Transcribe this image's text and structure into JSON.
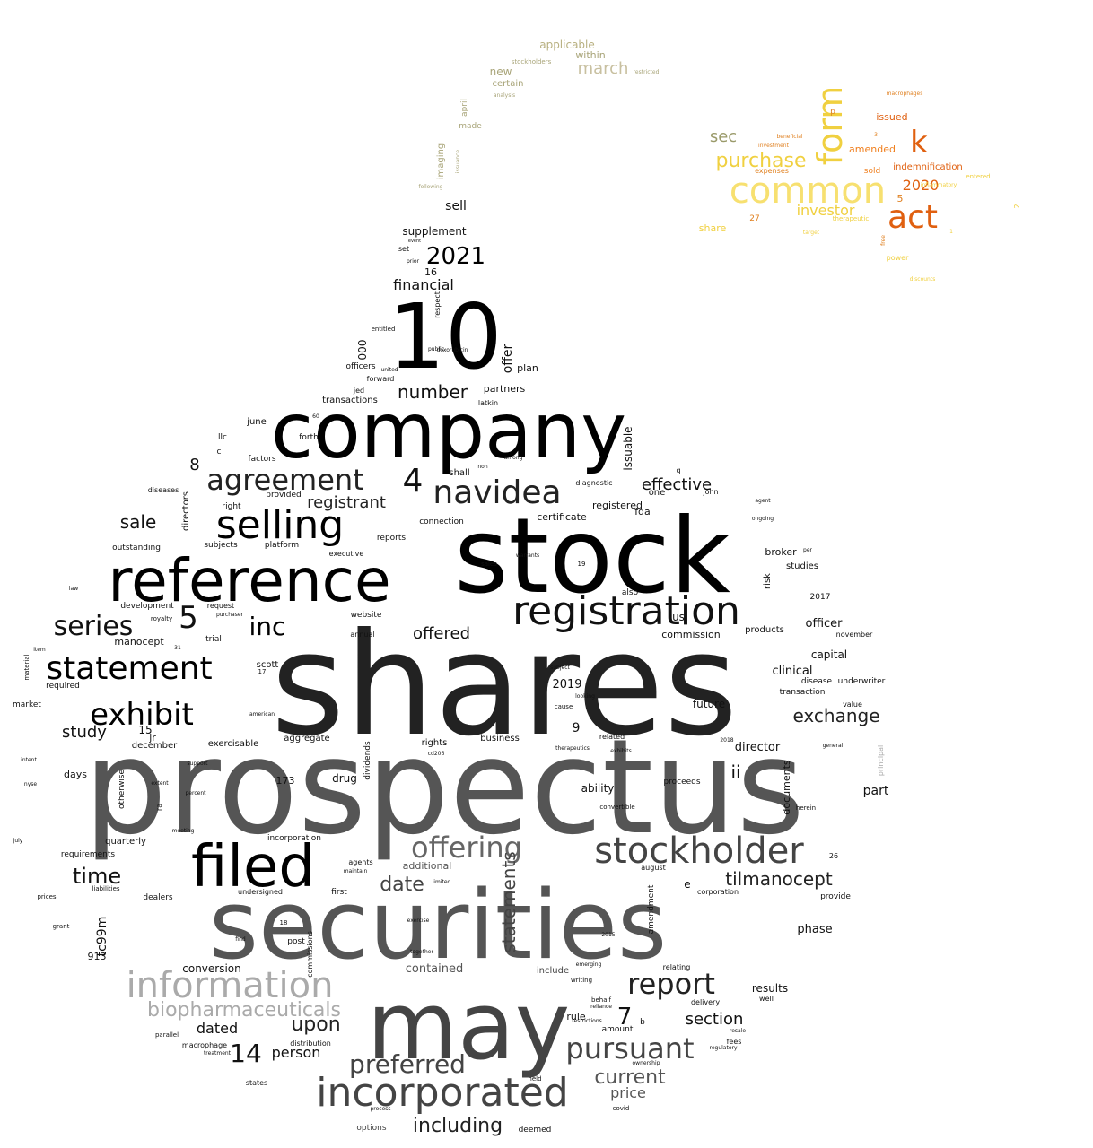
{
  "word_cloud": {
    "palette": {
      "main": [
        "#000000",
        "#222222",
        "#555555",
        "#666666",
        "#aaaaaa"
      ],
      "accent_bird": [
        "#9a9a6a",
        "#b8b080",
        "#c8c0a0"
      ],
      "accent_fire": [
        "#f0d040",
        "#f7e070",
        "#e06010",
        "#f08020"
      ]
    },
    "words": [
      "shares",
      "prospectus",
      "stock",
      "company",
      "securities",
      "may",
      "10",
      "reference",
      "filed",
      "registration",
      "navidea",
      "selling",
      "statement",
      "incorporated",
      "agreement",
      "stockholder",
      "offering",
      "pursuant",
      "information",
      "exhibit",
      "series",
      "report",
      "2021",
      "preferred",
      "exchange",
      "tilmanocept",
      "inc",
      "upon",
      "current",
      "date",
      "time",
      "biopharmaceuticals",
      "including",
      "statements",
      "number",
      "financial",
      "sale",
      "effective",
      "section",
      "registrant",
      "offered",
      "common",
      "form",
      "act",
      "purchase",
      "k",
      "investor",
      "2020",
      "sec",
      "march",
      "applicable",
      "within",
      "certain",
      "new",
      "made",
      "imaging",
      "issued",
      "amended",
      "indemnification",
      "sold",
      "share",
      "dated",
      "person",
      "price",
      "contained",
      "conversion",
      "results",
      "phase",
      "part",
      "clinical",
      "capital",
      "officer",
      "director",
      "study",
      "manocept",
      "ii",
      "documents",
      "ability",
      "drug",
      "days",
      "quarterly",
      "rights",
      "business",
      "aggregate",
      "exercisable",
      "december",
      "scott",
      "2019",
      "future",
      "commission",
      "broker",
      "studies",
      "risk",
      "products",
      "certificate",
      "registered",
      "diagnostic",
      "connection",
      "partners",
      "transactions",
      "forth",
      "factors",
      "plan",
      "offer",
      "officers",
      "entitled",
      "supplement",
      "sell",
      "set",
      "june",
      "llc",
      "subjects",
      "platform",
      "provided",
      "outstanding",
      "development",
      "request",
      "trial",
      "annual",
      "website",
      "market",
      "required",
      "requirements",
      "otherwise",
      "incorporation",
      "additional",
      "dealers",
      "agents",
      "first",
      "undersigned",
      "post",
      "distribution",
      "commissions",
      "tc99m",
      "macrophage",
      "states",
      "options",
      "deemed",
      "held",
      "rule",
      "amount",
      "delivery",
      "fees",
      "well",
      "relating",
      "include",
      "amendment",
      "corporation",
      "provide",
      "august",
      "transaction",
      "disease",
      "underwriter",
      "value",
      "november",
      "proceeds",
      "herein",
      "convertible",
      "related",
      "also",
      "one",
      "fda",
      "john",
      "agent",
      "ongoing",
      "per",
      "2017",
      "q",
      "issuable",
      "respect",
      "000",
      "forward",
      "doxorubicin",
      "latkin",
      "shall",
      "non",
      "among",
      "directors",
      "diseases",
      "right",
      "executive",
      "reports",
      "sales",
      "warrants",
      "law",
      "royalty",
      "material",
      "item",
      "intent",
      "nyse",
      "july",
      "grant",
      "prices",
      "parallel",
      "treatment",
      "find",
      "support",
      "meeting",
      "extent",
      "percent",
      "american",
      "cause",
      "looking",
      "subject",
      "therapeutics",
      "exhibits",
      "general",
      "principal",
      "dividends",
      "liabilities",
      "purchaser",
      "public",
      "prior",
      "event",
      "united",
      "maintain",
      "limited",
      "together",
      "writing",
      "emerging",
      "behalf",
      "restrictions",
      "reliance",
      "ownership",
      "covid",
      "regulatory",
      "resale",
      "process",
      "2015",
      "2018",
      "cd206",
      "exercise",
      "issuance",
      "following",
      "april",
      "analysis",
      "stockholders",
      "restricted",
      "macrophages",
      "beneficial",
      "investment",
      "expenses",
      "therapeutic",
      "power",
      "target",
      "discounts",
      "entered",
      "free",
      "inflammatory",
      "1",
      "2",
      "3",
      "4",
      "5",
      "7",
      "8",
      "9",
      "13",
      "14",
      "15",
      "16",
      "17",
      "18",
      "19",
      "20",
      "26",
      "27",
      "31",
      "60",
      "173",
      "913",
      "b",
      "c",
      "e",
      "p",
      "us",
      "jr",
      "ra",
      "jed"
    ]
  }
}
